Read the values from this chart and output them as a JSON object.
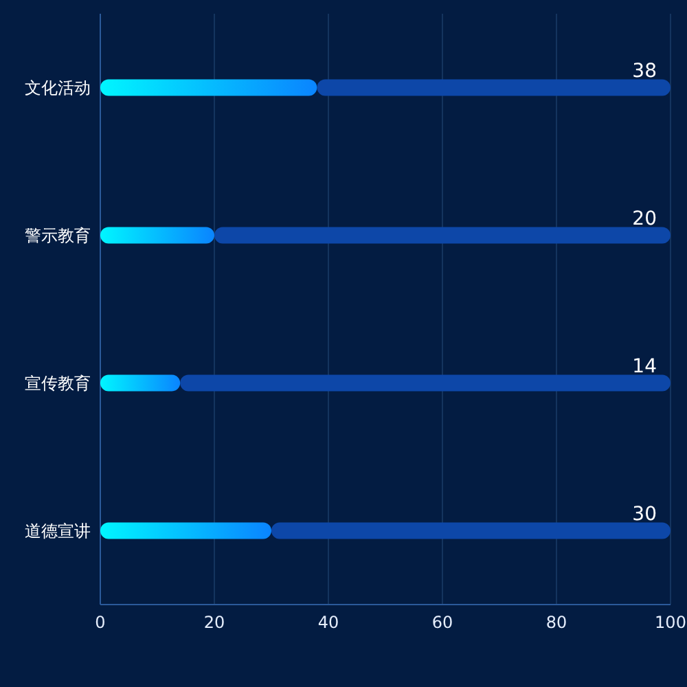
{
  "chart_data": {
    "type": "bar",
    "orientation": "horizontal",
    "categories": [
      "文化活动",
      "警示教育",
      "宣传教育",
      "道德宣讲"
    ],
    "series": [
      {
        "color": "#0a84ff",
        "values": [
          38,
          20,
          14,
          30
        ]
      },
      {
        "color": "#0d47a8",
        "values": [
          62,
          80,
          86,
          70
        ]
      }
    ],
    "annotations": [
      "38",
      "20",
      "14",
      "30"
    ],
    "stacked": true,
    "xlim": [
      0,
      100
    ],
    "xticks": [
      0,
      20,
      40,
      60,
      80,
      100
    ],
    "grid": "x"
  }
}
